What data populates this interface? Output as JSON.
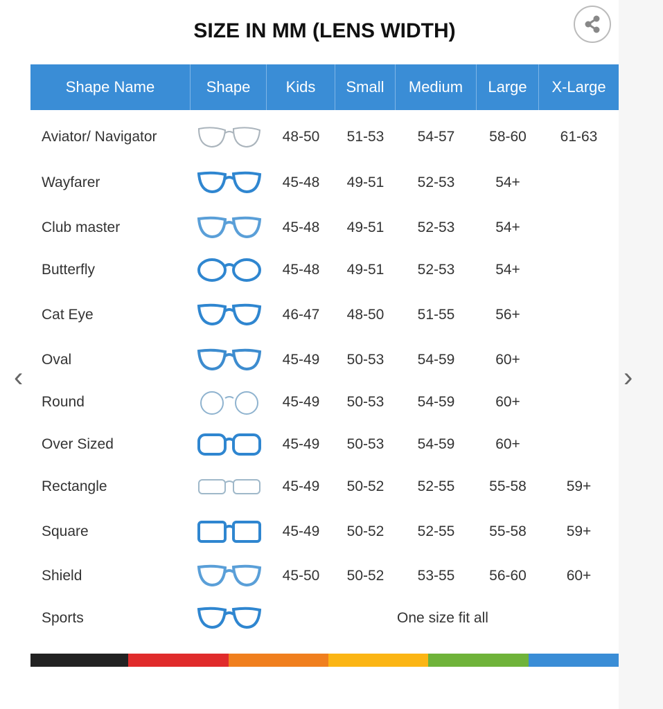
{
  "title": "SIZE IN MM (LENS WIDTH)",
  "share_icon": "share-icon",
  "columns": [
    "Shape Name",
    "Shape",
    "Kids",
    "Small",
    "Medium",
    "Large",
    "X-Large"
  ],
  "rows": [
    {
      "name": "Aviator/ Navigator",
      "icon": "aviator-glasses-icon",
      "style": "aviator",
      "color": "#aab4bc",
      "sizes": [
        "48-50",
        "51-53",
        "54-57",
        "58-60",
        "61-63"
      ]
    },
    {
      "name": "Wayfarer",
      "icon": "wayfarer-glasses-icon",
      "style": "wayfarer",
      "color": "#2f86d0",
      "sizes": [
        "45-48",
        "49-51",
        "52-53",
        "54+",
        ""
      ]
    },
    {
      "name": "Club master",
      "icon": "clubmaster-glasses-icon",
      "style": "clubmaster",
      "color": "#5a9fd8",
      "sizes": [
        "45-48",
        "49-51",
        "52-53",
        "54+",
        ""
      ]
    },
    {
      "name": "Butterfly",
      "icon": "butterfly-glasses-icon",
      "style": "butterfly",
      "color": "#2f86d0",
      "sizes": [
        "45-48",
        "49-51",
        "52-53",
        "54+",
        ""
      ]
    },
    {
      "name": "Cat Eye",
      "icon": "cat-eye-glasses-icon",
      "style": "cateye",
      "color": "#2f86d0",
      "sizes": [
        "46-47",
        "48-50",
        "51-55",
        "56+",
        ""
      ]
    },
    {
      "name": "Oval",
      "icon": "oval-glasses-icon",
      "style": "oval",
      "color": "#3d8ccf",
      "sizes": [
        "45-49",
        "50-53",
        "54-59",
        "60+",
        ""
      ]
    },
    {
      "name": "Round",
      "icon": "round-glasses-icon",
      "style": "round",
      "color": "#8fb3cf",
      "sizes": [
        "45-49",
        "50-53",
        "54-59",
        "60+",
        ""
      ]
    },
    {
      "name": "Over Sized",
      "icon": "oversized-glasses-icon",
      "style": "oversized",
      "color": "#2f86d0",
      "sizes": [
        "45-49",
        "50-53",
        "54-59",
        "60+",
        ""
      ]
    },
    {
      "name": "Rectangle",
      "icon": "rectangle-glasses-icon",
      "style": "rectangle",
      "color": "#9fb8c9",
      "sizes": [
        "45-49",
        "50-52",
        "52-55",
        "55-58",
        "59+"
      ]
    },
    {
      "name": "Square",
      "icon": "square-glasses-icon",
      "style": "square",
      "color": "#2f86d0",
      "sizes": [
        "45-49",
        "50-52",
        "52-55",
        "55-58",
        "59+"
      ]
    },
    {
      "name": "Shield",
      "icon": "shield-glasses-icon",
      "style": "shield",
      "color": "#5a9fd8",
      "sizes": [
        "45-50",
        "50-52",
        "53-55",
        "56-60",
        "60+"
      ]
    },
    {
      "name": "Sports",
      "icon": "sports-glasses-icon",
      "style": "sports",
      "color": "#2f86d0",
      "note": "One size fit all"
    }
  ],
  "color_bar": [
    "#222222",
    "#e02b2b",
    "#f07f1e",
    "#fbb514",
    "#6fb33a",
    "#3a8dd6"
  ],
  "nav": {
    "prev_icon": "chevron-left-icon",
    "next_icon": "chevron-right-icon"
  },
  "header_color": "#3a8dd6"
}
